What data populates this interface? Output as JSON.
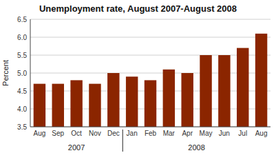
{
  "chart_data": {
    "type": "bar",
    "title": "Unemployment rate, August 2007-August 2008",
    "ylabel": "Percent",
    "categories": [
      "Aug",
      "Sep",
      "Oct",
      "Nov",
      "Dec",
      "Jan",
      "Feb",
      "Mar",
      "Apr",
      "May",
      "Jun",
      "Jul",
      "Aug"
    ],
    "values": [
      4.7,
      4.7,
      4.8,
      4.7,
      5.0,
      4.9,
      4.8,
      5.1,
      5.0,
      5.5,
      5.5,
      5.7,
      6.1
    ],
    "color": "#8B2500",
    "ylim": [
      3.5,
      6.5
    ],
    "yticks": [
      3.5,
      {
        "value": 4.0,
        "label": "4.0"
      },
      4.5,
      {
        "value": 5.0,
        "label": "5.0"
      },
      5.5,
      {
        "value": 6.0,
        "label": "6.0"
      },
      6.5
    ],
    "grid": true,
    "annotations": [
      "2007",
      "2008"
    ]
  }
}
